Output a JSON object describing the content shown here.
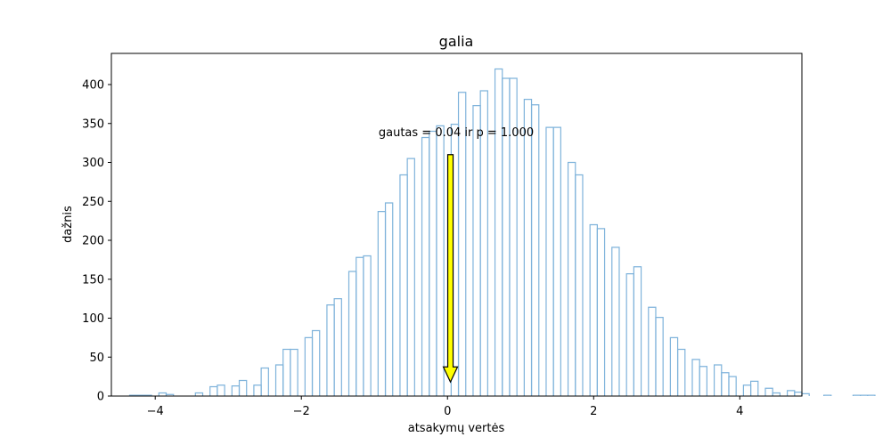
{
  "chart_data": {
    "type": "bar",
    "title": "galia",
    "xlabel": "atsakymų vertės",
    "ylabel": "dažnis",
    "xlim": [
      -4.6,
      4.85
    ],
    "ylim": [
      0,
      440
    ],
    "xticks": [
      -4,
      -2,
      0,
      2,
      4
    ],
    "xtick_labels": [
      "−4",
      "−2",
      "0",
      "2",
      "4"
    ],
    "yticks": [
      0,
      50,
      100,
      150,
      200,
      250,
      300,
      350,
      400
    ],
    "ytick_labels": [
      "0",
      "50",
      "100",
      "150",
      "200",
      "250",
      "300",
      "350",
      "400"
    ],
    "histogram": {
      "style": "step",
      "color": "#7fb3db",
      "bin_start": -4.35,
      "bin_width": 0.1,
      "counts": [
        1,
        1,
        1,
        0,
        4,
        2,
        0,
        0,
        0,
        4,
        0,
        12,
        14,
        0,
        13,
        20,
        0,
        14,
        36,
        0,
        40,
        60,
        60,
        0,
        75,
        84,
        0,
        117,
        125,
        0,
        160,
        178,
        180,
        0,
        237,
        248,
        0,
        284,
        305,
        0,
        332,
        340,
        347,
        0,
        349,
        390,
        0,
        373,
        392,
        0,
        420,
        408,
        408,
        0,
        381,
        374,
        0,
        345,
        345,
        0,
        300,
        284,
        0,
        220,
        215,
        0,
        191,
        0,
        157,
        166,
        0,
        114,
        101,
        0,
        75,
        60,
        0,
        47,
        38,
        0,
        40,
        30,
        25,
        0,
        14,
        19,
        0,
        10,
        4,
        0,
        7,
        5,
        3,
        0,
        0,
        1,
        0,
        0,
        0,
        1,
        1,
        1
      ]
    },
    "annotation": {
      "text": "gautas = 0.04 ir p = 1.000",
      "arrow_x": 0.04,
      "arrow_from_y": 310,
      "arrow_to_y": 18,
      "arrow_fill": "#ffff00",
      "arrow_edge": "#000000"
    },
    "grid": false,
    "legend": "none"
  }
}
